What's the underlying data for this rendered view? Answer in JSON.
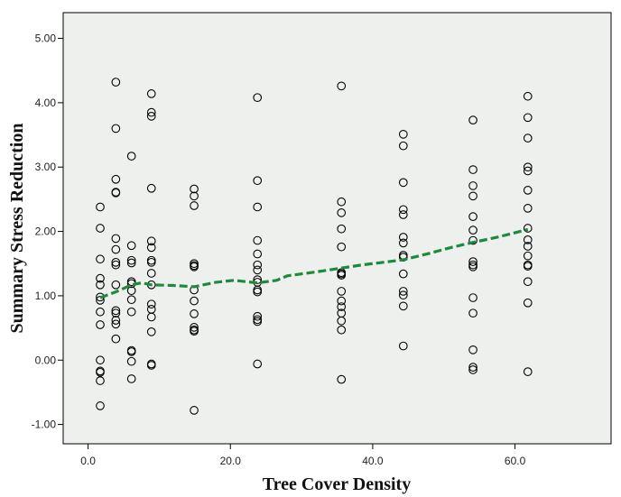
{
  "chart_data": {
    "type": "scatter",
    "title": "",
    "xlabel": "Tree Cover Density",
    "ylabel": "Summary Stress Reduction",
    "xlim": [
      -3.5,
      73.5
    ],
    "ylim": [
      -1.3,
      5.4
    ],
    "x_ticks": [
      0,
      20,
      40,
      60
    ],
    "x_tick_labels": [
      "0.0",
      "20.0",
      "40.0",
      "60.0"
    ],
    "y_ticks": [
      -1,
      0,
      1,
      2,
      3,
      4,
      5
    ],
    "y_tick_labels": [
      "-1.00",
      "0.00",
      "1.00",
      "2.00",
      "3.00",
      "4.00",
      "5.00"
    ],
    "grid": false,
    "plot_background": "#eef0ee",
    "point_color": "#000000",
    "fit_line_color": "#1f8a3c",
    "points": [
      {
        "x": 1.7,
        "y": 2.38
      },
      {
        "x": 1.7,
        "y": 2.05
      },
      {
        "x": 1.7,
        "y": 1.57
      },
      {
        "x": 1.7,
        "y": 1.27
      },
      {
        "x": 1.7,
        "y": 1.17
      },
      {
        "x": 1.7,
        "y": 0.98
      },
      {
        "x": 1.7,
        "y": 0.93
      },
      {
        "x": 1.7,
        "y": 0.75
      },
      {
        "x": 1.7,
        "y": 0.55
      },
      {
        "x": 1.7,
        "y": 0.0
      },
      {
        "x": 1.7,
        "y": -0.17
      },
      {
        "x": 1.7,
        "y": -0.19
      },
      {
        "x": 1.7,
        "y": -0.32
      },
      {
        "x": 1.7,
        "y": -0.71
      },
      {
        "x": 3.9,
        "y": 4.32
      },
      {
        "x": 3.9,
        "y": 3.6
      },
      {
        "x": 3.9,
        "y": 2.81
      },
      {
        "x": 3.9,
        "y": 2.61
      },
      {
        "x": 3.9,
        "y": 2.6
      },
      {
        "x": 3.9,
        "y": 1.89
      },
      {
        "x": 3.9,
        "y": 1.72
      },
      {
        "x": 3.9,
        "y": 1.52
      },
      {
        "x": 3.9,
        "y": 1.48
      },
      {
        "x": 3.9,
        "y": 1.17
      },
      {
        "x": 3.9,
        "y": 0.77
      },
      {
        "x": 3.9,
        "y": 0.73
      },
      {
        "x": 3.9,
        "y": 0.62
      },
      {
        "x": 3.9,
        "y": 0.56
      },
      {
        "x": 3.9,
        "y": 0.33
      },
      {
        "x": 6.1,
        "y": 3.17
      },
      {
        "x": 6.1,
        "y": 1.78
      },
      {
        "x": 6.1,
        "y": 1.55
      },
      {
        "x": 6.1,
        "y": 1.51
      },
      {
        "x": 6.1,
        "y": 1.22
      },
      {
        "x": 6.1,
        "y": 1.19
      },
      {
        "x": 6.1,
        "y": 1.08
      },
      {
        "x": 6.1,
        "y": 0.94
      },
      {
        "x": 6.1,
        "y": 0.75
      },
      {
        "x": 6.1,
        "y": 0.15
      },
      {
        "x": 6.1,
        "y": 0.13
      },
      {
        "x": 6.1,
        "y": -0.02
      },
      {
        "x": 6.1,
        "y": -0.29
      },
      {
        "x": 8.9,
        "y": 4.14
      },
      {
        "x": 8.9,
        "y": 3.85
      },
      {
        "x": 8.9,
        "y": 3.79
      },
      {
        "x": 8.9,
        "y": 2.67
      },
      {
        "x": 8.9,
        "y": 1.85
      },
      {
        "x": 8.9,
        "y": 1.75
      },
      {
        "x": 8.9,
        "y": 1.55
      },
      {
        "x": 8.9,
        "y": 1.52
      },
      {
        "x": 8.9,
        "y": 1.35
      },
      {
        "x": 8.9,
        "y": 1.17
      },
      {
        "x": 8.9,
        "y": 0.87
      },
      {
        "x": 8.9,
        "y": 0.79
      },
      {
        "x": 8.9,
        "y": 0.67
      },
      {
        "x": 8.9,
        "y": 0.44
      },
      {
        "x": 8.9,
        "y": -0.06
      },
      {
        "x": 8.9,
        "y": -0.08
      },
      {
        "x": 14.9,
        "y": 2.66
      },
      {
        "x": 14.9,
        "y": 2.55
      },
      {
        "x": 14.9,
        "y": 2.4
      },
      {
        "x": 14.9,
        "y": 1.5
      },
      {
        "x": 14.9,
        "y": 1.47
      },
      {
        "x": 14.9,
        "y": 1.45
      },
      {
        "x": 14.9,
        "y": 1.09
      },
      {
        "x": 14.9,
        "y": 0.92
      },
      {
        "x": 14.9,
        "y": 0.72
      },
      {
        "x": 14.9,
        "y": 0.51
      },
      {
        "x": 14.9,
        "y": 0.47
      },
      {
        "x": 14.9,
        "y": 0.45
      },
      {
        "x": 14.9,
        "y": -0.78
      },
      {
        "x": 23.8,
        "y": 4.08
      },
      {
        "x": 23.8,
        "y": 2.79
      },
      {
        "x": 23.8,
        "y": 2.38
      },
      {
        "x": 23.8,
        "y": 1.86
      },
      {
        "x": 23.8,
        "y": 1.65
      },
      {
        "x": 23.8,
        "y": 1.48
      },
      {
        "x": 23.8,
        "y": 1.4
      },
      {
        "x": 23.8,
        "y": 1.25
      },
      {
        "x": 23.8,
        "y": 1.21
      },
      {
        "x": 23.8,
        "y": 1.09
      },
      {
        "x": 23.8,
        "y": 1.06
      },
      {
        "x": 23.8,
        "y": 0.68
      },
      {
        "x": 23.8,
        "y": 0.63
      },
      {
        "x": 23.8,
        "y": 0.6
      },
      {
        "x": 23.8,
        "y": -0.06
      },
      {
        "x": 35.6,
        "y": 4.26
      },
      {
        "x": 35.6,
        "y": 2.46
      },
      {
        "x": 35.6,
        "y": 2.29
      },
      {
        "x": 35.6,
        "y": 2.04
      },
      {
        "x": 35.6,
        "y": 1.76
      },
      {
        "x": 35.6,
        "y": 1.36
      },
      {
        "x": 35.6,
        "y": 1.34
      },
      {
        "x": 35.6,
        "y": 1.32
      },
      {
        "x": 35.6,
        "y": 1.07
      },
      {
        "x": 35.6,
        "y": 0.92
      },
      {
        "x": 35.6,
        "y": 0.83
      },
      {
        "x": 35.6,
        "y": 0.73
      },
      {
        "x": 35.6,
        "y": 0.61
      },
      {
        "x": 35.6,
        "y": 0.47
      },
      {
        "x": 35.6,
        "y": -0.3
      },
      {
        "x": 44.3,
        "y": 3.51
      },
      {
        "x": 44.3,
        "y": 3.33
      },
      {
        "x": 44.3,
        "y": 2.76
      },
      {
        "x": 44.3,
        "y": 2.34
      },
      {
        "x": 44.3,
        "y": 2.26
      },
      {
        "x": 44.3,
        "y": 1.91
      },
      {
        "x": 44.3,
        "y": 1.82
      },
      {
        "x": 44.3,
        "y": 1.63
      },
      {
        "x": 44.3,
        "y": 1.6
      },
      {
        "x": 44.3,
        "y": 1.34
      },
      {
        "x": 44.3,
        "y": 1.07
      },
      {
        "x": 44.3,
        "y": 1.01
      },
      {
        "x": 44.3,
        "y": 0.84
      },
      {
        "x": 44.3,
        "y": 0.22
      },
      {
        "x": 54.1,
        "y": 3.73
      },
      {
        "x": 54.1,
        "y": 2.96
      },
      {
        "x": 54.1,
        "y": 2.71
      },
      {
        "x": 54.1,
        "y": 2.55
      },
      {
        "x": 54.1,
        "y": 2.23
      },
      {
        "x": 54.1,
        "y": 2.02
      },
      {
        "x": 54.1,
        "y": 1.86
      },
      {
        "x": 54.1,
        "y": 1.53
      },
      {
        "x": 54.1,
        "y": 1.48
      },
      {
        "x": 54.1,
        "y": 1.45
      },
      {
        "x": 54.1,
        "y": 0.97
      },
      {
        "x": 54.1,
        "y": 0.73
      },
      {
        "x": 54.1,
        "y": 0.16
      },
      {
        "x": 54.1,
        "y": -0.11
      },
      {
        "x": 54.1,
        "y": -0.15
      },
      {
        "x": 61.8,
        "y": 4.1
      },
      {
        "x": 61.8,
        "y": 3.77
      },
      {
        "x": 61.8,
        "y": 3.45
      },
      {
        "x": 61.8,
        "y": 3.0
      },
      {
        "x": 61.8,
        "y": 2.94
      },
      {
        "x": 61.8,
        "y": 2.64
      },
      {
        "x": 61.8,
        "y": 2.36
      },
      {
        "x": 61.8,
        "y": 2.05
      },
      {
        "x": 61.8,
        "y": 1.87
      },
      {
        "x": 61.8,
        "y": 1.77
      },
      {
        "x": 61.8,
        "y": 1.62
      },
      {
        "x": 61.8,
        "y": 1.48
      },
      {
        "x": 61.8,
        "y": 1.46
      },
      {
        "x": 61.8,
        "y": 1.22
      },
      {
        "x": 61.8,
        "y": 0.89
      },
      {
        "x": 61.8,
        "y": -0.18
      }
    ],
    "fit_line": {
      "style": "dashed",
      "x": [
        1.7,
        3.9,
        6.1,
        7.5,
        8.9,
        12.0,
        14.9,
        18.0,
        20.5,
        23.8,
        26.5,
        28.0,
        32.0,
        35.6,
        38.5,
        41.5,
        44.3,
        48.0,
        51.0,
        54.1,
        57.5,
        61.8
      ],
      "y": [
        0.97,
        1.06,
        1.17,
        1.2,
        1.17,
        1.16,
        1.14,
        1.21,
        1.24,
        1.2,
        1.24,
        1.31,
        1.37,
        1.43,
        1.48,
        1.52,
        1.56,
        1.66,
        1.75,
        1.83,
        1.91,
        2.03
      ]
    }
  }
}
